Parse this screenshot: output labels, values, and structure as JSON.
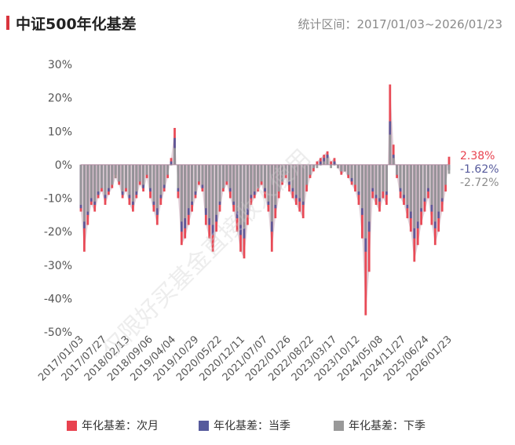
{
  "header": {
    "title": "中证500年化基差",
    "range": "统计区间：2017/01/03~2026/01/23"
  },
  "watermark": "仅限好买基金直接收人使用",
  "end_labels": [
    {
      "text": "2.38%",
      "color": "#e8424f"
    },
    {
      "text": "-1.62%",
      "color": "#565a9c"
    },
    {
      "text": "-2.72%",
      "color": "#8c8c8c"
    }
  ],
  "chart_data": {
    "type": "area",
    "ylim": [
      -50,
      30
    ],
    "yticks": [
      "30%",
      "20%",
      "10%",
      "0%",
      "-10%",
      "-20%",
      "-30%",
      "-40%",
      "-50%"
    ],
    "xticks": [
      "2017/01/03",
      "2017/07/27",
      "2018/02/13",
      "2018/09/06",
      "2019/04/04",
      "2019/10/29",
      "2020/05/22",
      "2020/12/11",
      "2021/07/07",
      "2022/01/26",
      "2022/08/22",
      "2023/03/17",
      "2023/10/12",
      "2024/05/08",
      "2024/11/27",
      "2025/06/24",
      "2026/01/23"
    ],
    "colors": {
      "next_month": "#e8424f",
      "current_quarter": "#565a9c",
      "next_quarter": "#999999",
      "zero_band": "#c9a9b8"
    },
    "series": [
      {
        "name": "年化基差：次月",
        "key": "next_month",
        "values": [
          -14,
          -26,
          -18,
          -12,
          -14,
          -10,
          -8,
          -12,
          -9,
          -7,
          -4,
          -6,
          -10,
          -8,
          -12,
          -14,
          -10,
          -6,
          -8,
          -4,
          -10,
          -14,
          -18,
          -12,
          -8,
          -4,
          2,
          11,
          -10,
          -24,
          -22,
          -18,
          -14,
          -10,
          -6,
          -8,
          -18,
          -22,
          -26,
          -20,
          -14,
          -8,
          -6,
          -10,
          -14,
          -20,
          -26,
          -28,
          -18,
          -12,
          -10,
          -8,
          -6,
          -10,
          -14,
          -26,
          -16,
          -10,
          -6,
          -4,
          -8,
          -10,
          -12,
          -14,
          -16,
          -8,
          -4,
          -2,
          1,
          2,
          3,
          4,
          1,
          2,
          -1,
          -3,
          -2,
          -4,
          -6,
          -8,
          -12,
          -22,
          -45,
          -32,
          -10,
          -12,
          -14,
          -10,
          -12,
          24,
          6,
          -4,
          -10,
          -12,
          -16,
          -20,
          -29,
          -24,
          -18,
          -14,
          -10,
          -18,
          -24,
          -20,
          -14,
          -8,
          2.38
        ]
      },
      {
        "name": "年化基差：当季",
        "key": "current_quarter",
        "values": [
          -13,
          -19,
          -15,
          -11,
          -12,
          -9,
          -7,
          -10,
          -8,
          -6,
          -3,
          -5,
          -9,
          -7,
          -10,
          -12,
          -9,
          -5,
          -7,
          -3,
          -8,
          -12,
          -15,
          -10,
          -7,
          -3,
          1,
          8,
          -8,
          -20,
          -19,
          -15,
          -12,
          -9,
          -5,
          -7,
          -15,
          -18,
          -21,
          -17,
          -12,
          -7,
          -5,
          -8,
          -12,
          -16,
          -21,
          -22,
          -15,
          -10,
          -9,
          -7,
          -5,
          -8,
          -12,
          -20,
          -13,
          -8,
          -5,
          -3,
          -6,
          -8,
          -10,
          -11,
          -12,
          -6,
          -3,
          -1,
          0,
          1,
          2,
          3,
          0,
          1,
          -1,
          -2,
          -2,
          -3,
          -5,
          -6,
          -9,
          -15,
          -26,
          -20,
          -8,
          -10,
          -11,
          -8,
          -9,
          13,
          3,
          -3,
          -8,
          -10,
          -13,
          -16,
          -22,
          -19,
          -14,
          -11,
          -8,
          -14,
          -19,
          -16,
          -11,
          -6,
          -1.62
        ]
      },
      {
        "name": "年化基差：下季",
        "key": "next_quarter",
        "values": [
          -12,
          -17,
          -14,
          -10,
          -11,
          -8,
          -7,
          -9,
          -7,
          -6,
          -4,
          -5,
          -8,
          -7,
          -9,
          -11,
          -8,
          -5,
          -6,
          -3,
          -7,
          -11,
          -13,
          -9,
          -6,
          -3,
          0,
          5,
          -7,
          -17,
          -16,
          -13,
          -11,
          -8,
          -5,
          -6,
          -13,
          -16,
          -18,
          -15,
          -11,
          -7,
          -5,
          -7,
          -11,
          -14,
          -18,
          -19,
          -13,
          -9,
          -8,
          -7,
          -5,
          -7,
          -11,
          -17,
          -12,
          -8,
          -5,
          -3,
          -5,
          -7,
          -9,
          -10,
          -11,
          -6,
          -3,
          -1,
          -1,
          0,
          1,
          2,
          -1,
          0,
          -1,
          -2,
          -2,
          -3,
          -4,
          -6,
          -8,
          -13,
          -22,
          -17,
          -7,
          -9,
          -10,
          -8,
          -8,
          9,
          2,
          -3,
          -7,
          -9,
          -12,
          -14,
          -19,
          -17,
          -13,
          -10,
          -7,
          -12,
          -17,
          -14,
          -10,
          -6,
          -2.72
        ]
      }
    ]
  },
  "legend": [
    {
      "label": "年化基差：次月",
      "color": "#e8424f"
    },
    {
      "label": "年化基差：当季",
      "color": "#565a9c"
    },
    {
      "label": "年化基差：下季",
      "color": "#999999"
    }
  ]
}
